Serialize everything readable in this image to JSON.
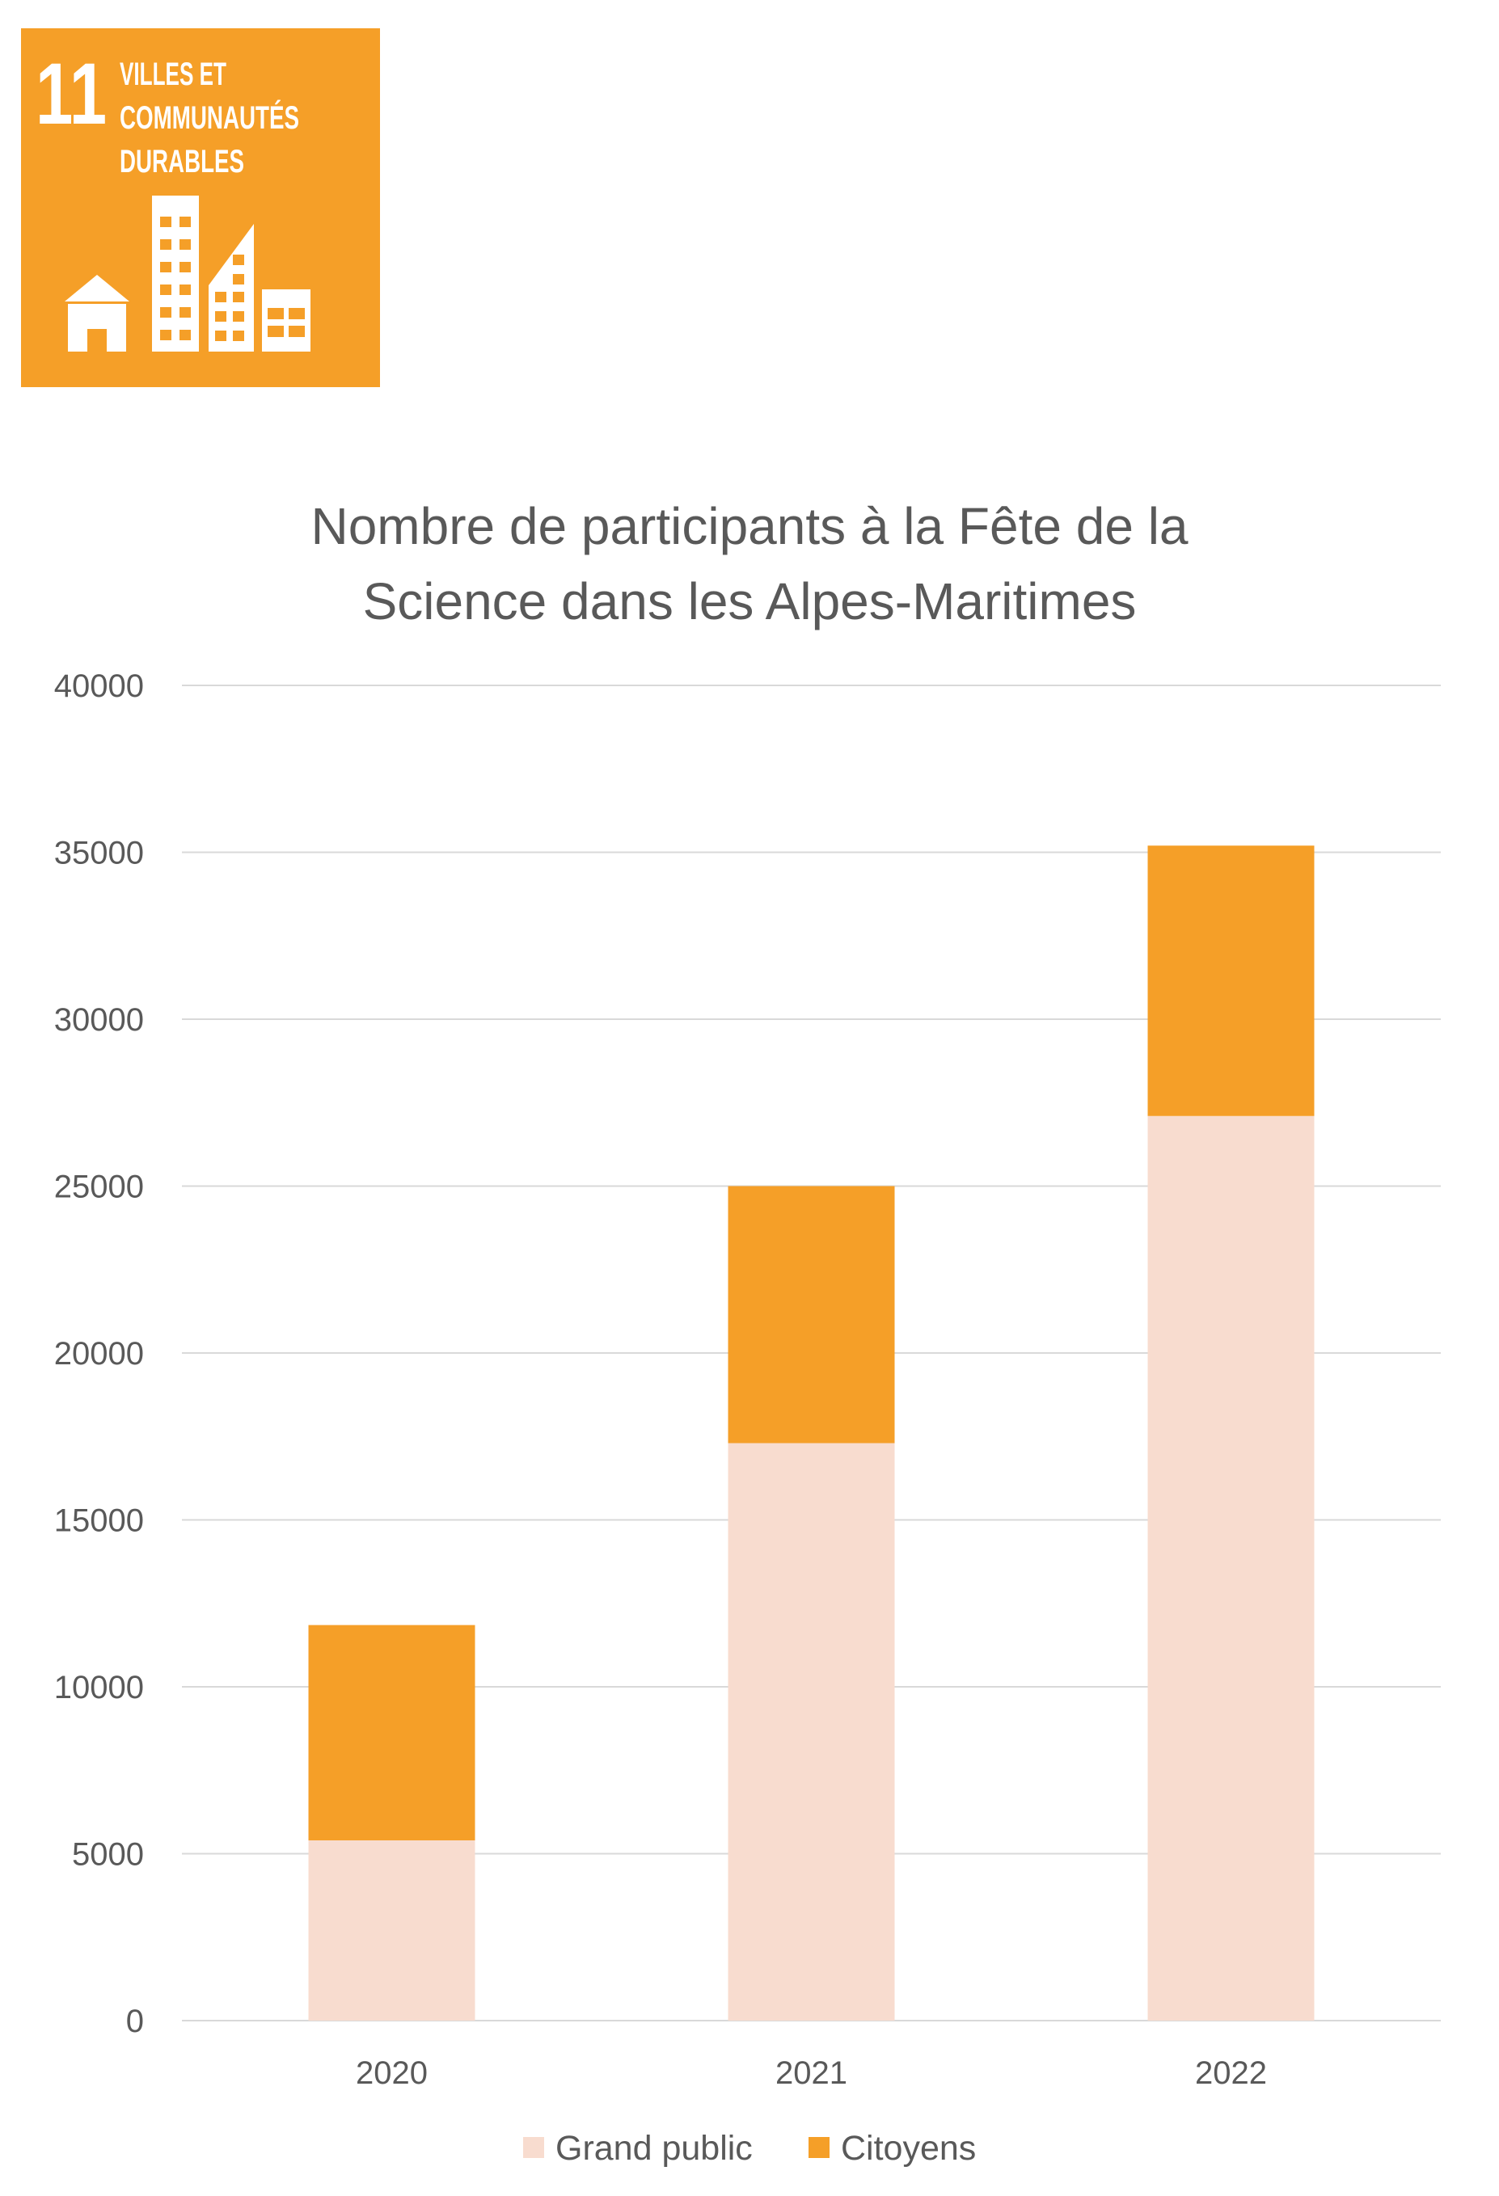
{
  "badge": {
    "number": "11",
    "text_lines": [
      "VILLES ET",
      "COMMUNAUTÉS",
      "DURABLES"
    ],
    "icon": "city-buildings-icon",
    "background_color": "#f59f28",
    "foreground_color": "#ffffff"
  },
  "chart_data": {
    "type": "bar",
    "stacked": true,
    "title_lines": [
      "Nombre de participants à la Fête de la",
      "Science dans les Alpes-Maritimes"
    ],
    "categories": [
      "2020",
      "2021",
      "2022"
    ],
    "series": [
      {
        "name": "Grand public",
        "values": [
          5400,
          17300,
          27100
        ],
        "color": "#f8dccf"
      },
      {
        "name": "Citoyens",
        "values": [
          6450,
          7700,
          8100
        ],
        "color": "#f59f28"
      }
    ],
    "ylim": [
      0,
      40000
    ],
    "yticks": [
      "0",
      "5000",
      "10000",
      "15000",
      "20000",
      "25000",
      "30000",
      "35000",
      "40000"
    ],
    "xlabel": "",
    "ylabel": "",
    "grid": true,
    "legend_position": "bottom"
  }
}
